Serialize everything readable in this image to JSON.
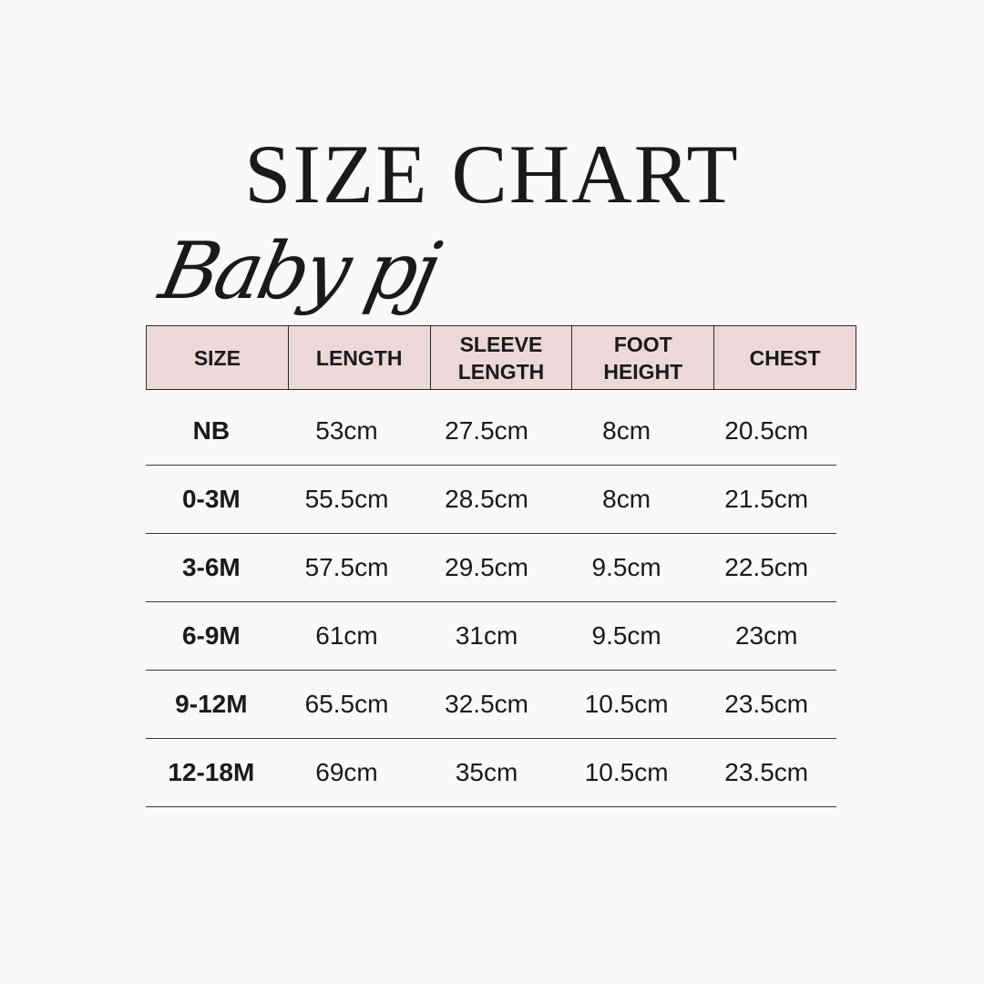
{
  "title": "SIZE CHART",
  "subtitle": "Baby pj",
  "colors": {
    "background": "#faf9f7",
    "header": "#ecd8d8",
    "text": "#1a1a1a"
  },
  "chart_data": {
    "type": "table",
    "columns": [
      "SIZE",
      "LENGTH",
      "SLEEVE\nLENGTH",
      "FOOT\nHEIGHT",
      "CHEST"
    ],
    "rows": [
      [
        "NB",
        "53cm",
        "27.5cm",
        "8cm",
        "20.5cm"
      ],
      [
        "0-3M",
        "55.5cm",
        "28.5cm",
        "8cm",
        "21.5cm"
      ],
      [
        "3-6M",
        "57.5cm",
        "29.5cm",
        "9.5cm",
        "22.5cm"
      ],
      [
        "6-9M",
        "61cm",
        "31cm",
        "9.5cm",
        "23cm"
      ],
      [
        "9-12M",
        "65.5cm",
        "32.5cm",
        "10.5cm",
        "23.5cm"
      ],
      [
        "12-18M",
        "69cm",
        "35cm",
        "10.5cm",
        "23.5cm"
      ]
    ]
  }
}
